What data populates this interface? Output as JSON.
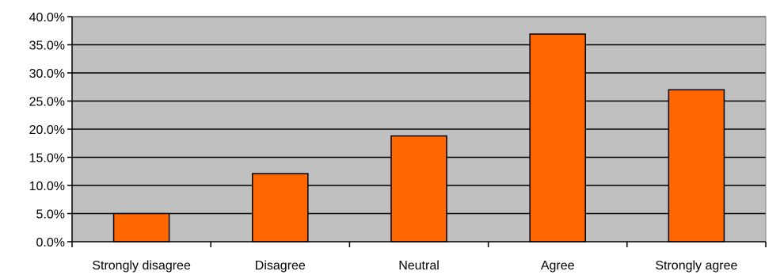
{
  "chart_data": {
    "type": "bar",
    "categories": [
      "Strongly disagree",
      "Disagree",
      "Neutral",
      "Agree",
      "Strongly agree"
    ],
    "values": [
      5.0,
      12.1,
      18.8,
      36.9,
      27.0
    ],
    "value_unit": "%",
    "ylim": [
      0,
      40
    ],
    "yticks": [
      "0.0%",
      "5.0%",
      "10.0%",
      "15.0%",
      "20.0%",
      "25.0%",
      "30.0%",
      "35.0%",
      "40.0%"
    ],
    "grid": true,
    "legend": "none",
    "title": "",
    "xlabel": "",
    "ylabel": ""
  },
  "colors": {
    "bar_fill": "#FF6600",
    "plot_background": "#C0C0C0",
    "gridline": "#000000",
    "bar_outline": "#000000"
  }
}
